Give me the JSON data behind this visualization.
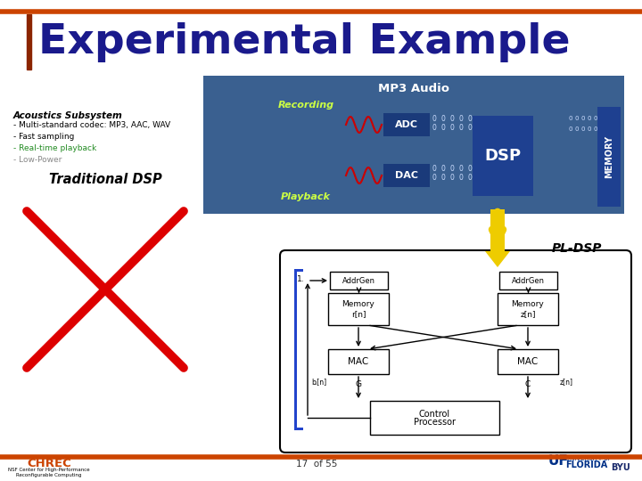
{
  "title": "Experimental Example",
  "title_fontsize": 34,
  "title_color": "#1a1a8c",
  "border_color": "#cc4400",
  "acoustics_title": "Acoustics Subsystem",
  "acoustics_bullets": [
    "- Multi-standard codec: MP3, AAC, WAV",
    "- Fast sampling",
    "- Real-time playback",
    "- Low-Power"
  ],
  "slide_bg": "#ffffff",
  "footer_text": "17  of 55",
  "mp3_box_text": "MP3 Audio",
  "pl_dsp_label": "PL-DSP",
  "traditional_label": "Traditional DSP",
  "red_x_color": "#dd0000",
  "mp3_bg": "#3a6090",
  "dsp_dark": "#1a3a7a",
  "recording_color": "#ccff44",
  "playback_color": "#ccff44"
}
